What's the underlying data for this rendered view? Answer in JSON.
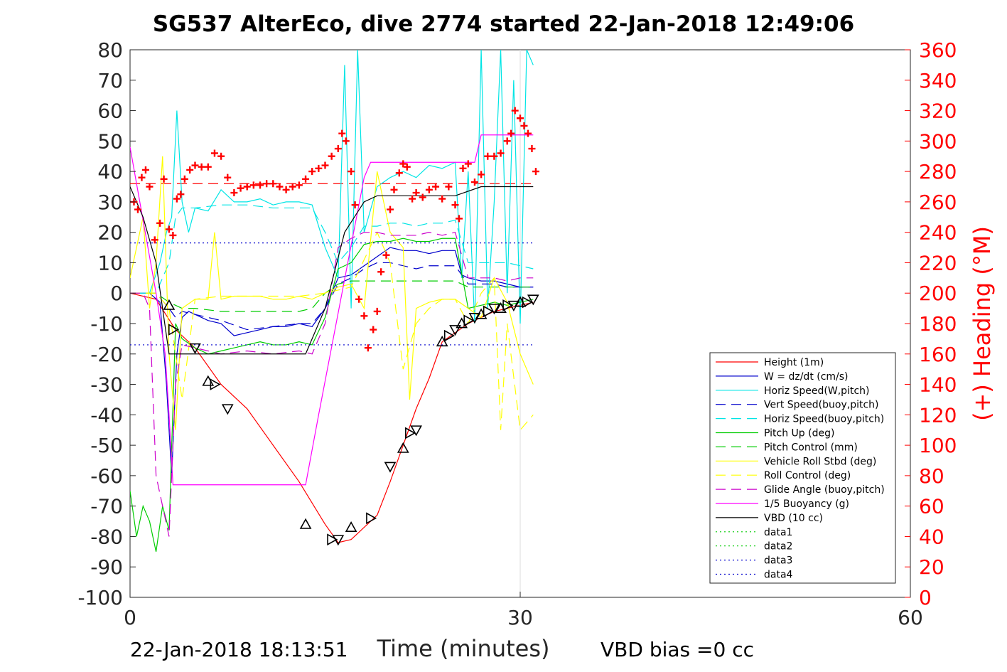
{
  "chart_data": {
    "type": "line",
    "title": "SG537 AlterEco, dive 2774 started 22-Jan-2018 12:49:06",
    "xlabel": "Time (minutes)",
    "ylabel": "",
    "y2label": "(+) Heading (°M)",
    "xlim": [
      0,
      60
    ],
    "ylim": [
      -100,
      80
    ],
    "y2lim": [
      0,
      360
    ],
    "xticks": [
      "0",
      "30",
      "60"
    ],
    "yticks": [
      "80",
      "70",
      "60",
      "50",
      "40",
      "30",
      "20",
      "10",
      "0",
      "-10",
      "-20",
      "-30",
      "-40",
      "-50",
      "-60",
      "-70",
      "-80",
      "-90",
      "-100"
    ],
    "y2ticks": [
      "360",
      "340",
      "320",
      "300",
      "280",
      "260",
      "240",
      "220",
      "200",
      "180",
      "160",
      "140",
      "120",
      "100",
      "80",
      "60",
      "40",
      "20",
      "0"
    ],
    "grid": "x-only at 30",
    "legend_position": "lower-right",
    "footer_left": "22-Jan-2018 18:13:51",
    "footer_right": "VBD bias =0 cc",
    "colors": {
      "height": "#ff0000",
      "w": "#0000cc",
      "horiz": "#00e5e5",
      "pitch": "#00cc00",
      "roll": "#ffff00",
      "glide": "#cc00cc",
      "buoy": "#ff00ff",
      "vbd": "#000000",
      "heading": "#ff0000",
      "axis_right": "#ff0000"
    },
    "series": [
      {
        "name": "Height (1m)",
        "color": "#ff0000",
        "dash": "solid",
        "x": [
          0,
          2,
          3.5,
          5,
          7,
          9,
          11,
          13,
          15,
          16,
          17,
          18,
          19,
          20,
          21,
          22,
          23,
          24,
          25,
          26,
          27,
          28,
          29,
          30,
          31
        ],
        "y": [
          0,
          -2,
          -12,
          -18,
          -30,
          -38,
          -50,
          -62,
          -76,
          -82,
          -81,
          -77,
          -73,
          -62,
          -50,
          -38,
          -28,
          -16,
          -13,
          -10,
          -8,
          -6,
          -5,
          -4,
          -3
        ]
      },
      {
        "name": "W = dz/dt (cm/s)",
        "color": "#0000cc",
        "dash": "solid",
        "x": [
          0,
          1.5,
          2.3,
          2.8,
          3.2,
          3.6,
          4,
          4.5,
          5,
          6,
          7,
          8,
          9,
          10,
          11,
          12,
          13,
          14,
          15,
          16,
          17,
          18,
          19,
          20,
          21,
          22,
          23,
          24,
          25,
          25.5,
          26,
          27,
          28,
          29,
          30,
          31
        ],
        "y": [
          0,
          0,
          -3,
          -30,
          -60,
          -20,
          -8,
          -6,
          -7,
          -9,
          -10,
          -14,
          -13,
          -12,
          -11,
          -11,
          -10,
          -11,
          -5,
          5,
          6,
          9,
          12,
          15,
          14,
          14,
          13,
          14,
          14,
          6,
          5,
          4,
          4,
          3,
          2,
          2
        ]
      },
      {
        "name": "Horiz Speed(W,pitch)",
        "color": "#00e5e5",
        "dash": "solid",
        "x": [
          0,
          1.5,
          2.3,
          2.8,
          3.2,
          3.6,
          4,
          4.5,
          5,
          6,
          7,
          8,
          9,
          10,
          11,
          12,
          13,
          14,
          15,
          15.5,
          16,
          16.5,
          17,
          17.5,
          18,
          19,
          20,
          21,
          22,
          23,
          24,
          25,
          25.5,
          26,
          26.5,
          27,
          27.5,
          28,
          28.5,
          29,
          29.5,
          30,
          30.5,
          31
        ],
        "y": [
          0,
          0,
          10,
          20,
          25,
          60,
          30,
          20,
          28,
          27,
          34,
          30,
          30,
          31,
          29,
          30,
          30,
          29,
          15,
          10,
          5,
          75,
          -5,
          80,
          20,
          35,
          38,
          40,
          38,
          42,
          41,
          43,
          5,
          40,
          -10,
          80,
          -5,
          30,
          80,
          0,
          70,
          -10,
          80,
          75
        ]
      },
      {
        "name": "Vert Speed(buoy,pitch)",
        "color": "#0000cc",
        "dash": "dashed",
        "x": [
          0,
          2,
          3,
          3.5,
          4,
          5,
          7,
          9,
          11,
          13,
          14,
          15,
          16,
          17,
          18,
          19,
          20,
          21,
          22,
          23,
          24,
          25,
          26,
          27,
          28,
          29,
          30,
          31
        ],
        "y": [
          0,
          0,
          -5,
          -8,
          -6,
          -7,
          -9,
          -12,
          -11,
          -10,
          -10,
          -5,
          3,
          5,
          8,
          10,
          10,
          9,
          8,
          9,
          9,
          9,
          3,
          3,
          3,
          2,
          2,
          2
        ]
      },
      {
        "name": "Horiz Speed(buoy,pitch)",
        "color": "#00e5e5",
        "dash": "dashed",
        "x": [
          0,
          2,
          3,
          3.5,
          4,
          5,
          7,
          9,
          11,
          13,
          14,
          15,
          16,
          17,
          18,
          19,
          20,
          21,
          22,
          23,
          24,
          25,
          26,
          27,
          28,
          29,
          30,
          31
        ],
        "y": [
          0,
          0,
          10,
          25,
          28,
          28,
          29,
          29,
          28,
          28,
          28,
          20,
          10,
          15,
          22,
          22,
          23,
          23,
          22,
          23,
          23,
          24,
          10,
          10,
          10,
          10,
          9,
          8
        ]
      },
      {
        "name": "Pitch Up (deg)",
        "color": "#00cc00",
        "dash": "solid",
        "x": [
          0,
          0.5,
          1,
          1.5,
          2,
          2.5,
          3,
          3.5,
          4,
          5,
          6,
          7,
          8,
          9,
          10,
          11,
          12,
          13,
          14,
          15,
          16,
          17,
          18,
          19,
          20,
          21,
          22,
          23,
          24,
          25,
          26,
          27,
          28,
          29,
          30,
          31
        ],
        "y": [
          -65,
          -80,
          -70,
          -75,
          -85,
          -70,
          -78,
          -10,
          -15,
          -18,
          -20,
          -19,
          -18,
          -17,
          -16,
          -17,
          -17,
          -16,
          -17,
          -8,
          8,
          10,
          16,
          17,
          17,
          18,
          17,
          17,
          18,
          18,
          -5,
          -4,
          -3,
          -4,
          -3,
          -2
        ]
      },
      {
        "name": "Pitch Control (mm)",
        "color": "#00cc00",
        "dash": "dashed",
        "x": [
          0,
          2,
          3,
          4,
          5,
          7,
          9,
          11,
          13,
          14,
          15,
          16,
          17,
          18,
          19,
          20,
          21,
          22,
          23,
          24,
          25,
          26,
          27,
          28,
          29,
          30,
          31
        ],
        "y": [
          0,
          0,
          -3,
          -5,
          -5,
          -6,
          -6,
          -6,
          -6,
          -5,
          0,
          3,
          4,
          4,
          4,
          4,
          4,
          4,
          4,
          4,
          4,
          2,
          2,
          2,
          2,
          2,
          2
        ]
      },
      {
        "name": "Vehicle Roll Stbd (deg)",
        "color": "#ffff00",
        "dash": "solid",
        "x": [
          0,
          1,
          1.5,
          2,
          2.5,
          3,
          3.5,
          4,
          5,
          6,
          6.5,
          7,
          8,
          9,
          10,
          11,
          12,
          13,
          14,
          15,
          16,
          17,
          18,
          19,
          20,
          21,
          21.5,
          22,
          23,
          24,
          25,
          26,
          27,
          28,
          29,
          30,
          31
        ],
        "y": [
          5,
          25,
          -5,
          10,
          45,
          -20,
          -45,
          -5,
          -2,
          -2,
          20,
          -2,
          -1,
          -1,
          -1,
          -2,
          -2,
          -1,
          -2,
          0,
          2,
          3,
          -5,
          40,
          20,
          15,
          -35,
          -5,
          -3,
          -2,
          -2,
          -5,
          -8,
          5,
          -3,
          -20,
          -30
        ]
      },
      {
        "name": "Roll Control (deg)",
        "color": "#ffff00",
        "dash": "dashed",
        "x": [
          0,
          2,
          3,
          4,
          5,
          7,
          9,
          11,
          13,
          15,
          17,
          19,
          20,
          21,
          22,
          23,
          24,
          25,
          26,
          27,
          28,
          28.5,
          29,
          30,
          31
        ],
        "y": [
          0,
          0,
          -5,
          -35,
          -2,
          -1,
          -1,
          -1,
          -1,
          0,
          2,
          20,
          10,
          -25,
          -10,
          -5,
          -2,
          -2,
          -10,
          0,
          5,
          -45,
          -10,
          -45,
          -40
        ]
      },
      {
        "name": "Glide Angle (buoy,pitch)",
        "color": "#cc00cc",
        "dash": "dashed",
        "x": [
          0,
          1,
          1.5,
          2,
          2.5,
          3,
          3.5,
          4,
          5,
          7,
          9,
          11,
          13,
          14,
          15,
          16,
          17,
          18,
          19,
          20,
          21,
          22,
          23,
          24,
          25,
          26,
          27,
          28,
          29,
          30,
          31
        ],
        "y": [
          0,
          0,
          -5,
          -60,
          -70,
          -80,
          -30,
          -17,
          -18,
          -20,
          -19,
          -20,
          -19,
          -20,
          -10,
          15,
          18,
          20,
          20,
          19,
          19,
          19,
          20,
          19,
          20,
          5,
          5,
          5,
          4,
          5,
          5
        ]
      },
      {
        "name": "1/5 Buoyancy (g)",
        "color": "#ff00ff",
        "dash": "solid",
        "x": [
          0,
          2,
          2.7,
          3,
          3.3,
          13.5,
          14.5,
          18,
          18.5,
          19,
          25,
          26.5,
          27,
          31
        ],
        "y": [
          48,
          0,
          -20,
          -40,
          -63,
          -63,
          -40,
          38,
          43,
          43,
          43,
          43,
          52,
          52
        ]
      },
      {
        "name": "VBD (10 cc)",
        "color": "#000000",
        "dash": "solid",
        "x": [
          0,
          1,
          2,
          2.5,
          3,
          13.5,
          15,
          16.5,
          18,
          19,
          25,
          27,
          28,
          31
        ],
        "y": [
          35,
          25,
          10,
          -5,
          -20,
          -20,
          -5,
          20,
          30,
          32,
          32,
          35,
          35,
          35
        ]
      },
      {
        "name": "data1",
        "color": "#00cc00",
        "dash": "dotted",
        "x": [],
        "y": []
      },
      {
        "name": "data2",
        "color": "#00cc00",
        "dash": "dotted",
        "x": [],
        "y": []
      },
      {
        "name": "data3",
        "color": "#0000cc",
        "dash": "dotted",
        "x": [
          0,
          31
        ],
        "y": [
          16.5,
          16.5
        ]
      },
      {
        "name": "data4",
        "color": "#0000cc",
        "dash": "dotted",
        "x": [
          0,
          31
        ],
        "y": [
          -17,
          -17
        ]
      }
    ],
    "extra_lines": [
      {
        "color": "#ff0000",
        "dash": "dashed",
        "axis": "y2",
        "x": [
          0,
          31
        ],
        "y": [
          272,
          272
        ]
      }
    ],
    "heading_points": {
      "x": [
        0.3,
        0.6,
        0.9,
        1.2,
        1.5,
        1.9,
        2.3,
        2.6,
        3,
        3.3,
        3.6,
        3.9,
        4.2,
        4.6,
        5,
        5.5,
        6,
        6.5,
        7,
        7.5,
        8,
        8.5,
        9,
        9.5,
        10,
        10.5,
        11,
        11.5,
        12,
        12.5,
        13,
        13.5,
        14,
        14.5,
        15,
        15.5,
        16,
        16.3,
        16.6,
        17,
        17.3,
        17.6,
        18,
        18.3,
        18.7,
        19,
        19.3,
        19.7,
        20,
        20.3,
        20.7,
        21,
        21.3,
        21.7,
        22,
        22.5,
        23,
        23.5,
        24,
        24.5,
        25,
        25.3,
        25.6,
        26,
        26.5,
        27,
        27.5,
        28,
        28.5,
        29,
        29.3,
        29.6,
        30,
        30.3,
        30.6,
        30.9,
        31.2
      ],
      "y": [
        260,
        255,
        276,
        281,
        270,
        235,
        246,
        275,
        242,
        238,
        262,
        265,
        275,
        281,
        284,
        283,
        283,
        292,
        290,
        276,
        266,
        269,
        270,
        271,
        271,
        272,
        272,
        270,
        268,
        270,
        271,
        275,
        280,
        282,
        284,
        290,
        295,
        305,
        300,
        280,
        258,
        196,
        185,
        164,
        176,
        188,
        214,
        225,
        255,
        268,
        279,
        285,
        283,
        262,
        266,
        263,
        268,
        270,
        262,
        270,
        258,
        249,
        282,
        285,
        273,
        278,
        290,
        290,
        292,
        300,
        305,
        320,
        315,
        310,
        305,
        295,
        280
      ]
    },
    "marker_points": {
      "x": [
        3,
        3.3,
        5,
        6,
        6.5,
        7.5,
        13.5,
        15.5,
        16,
        17,
        18.5,
        20,
        21,
        21.5,
        22,
        24,
        24.5,
        25,
        25.5,
        26,
        26.5,
        27,
        27.5,
        28,
        28.5,
        29,
        29.5,
        30,
        30.5,
        31
      ],
      "y": [
        -4,
        -12,
        -18,
        -29,
        -30,
        -38,
        -76,
        -81,
        -81,
        -77,
        -74,
        -57,
        -51,
        -46,
        -45,
        -16,
        -14,
        -12,
        -10,
        -9,
        -8,
        -7,
        -6,
        -5,
        -5,
        -4,
        -4,
        -3,
        -3,
        -2
      ]
    }
  }
}
